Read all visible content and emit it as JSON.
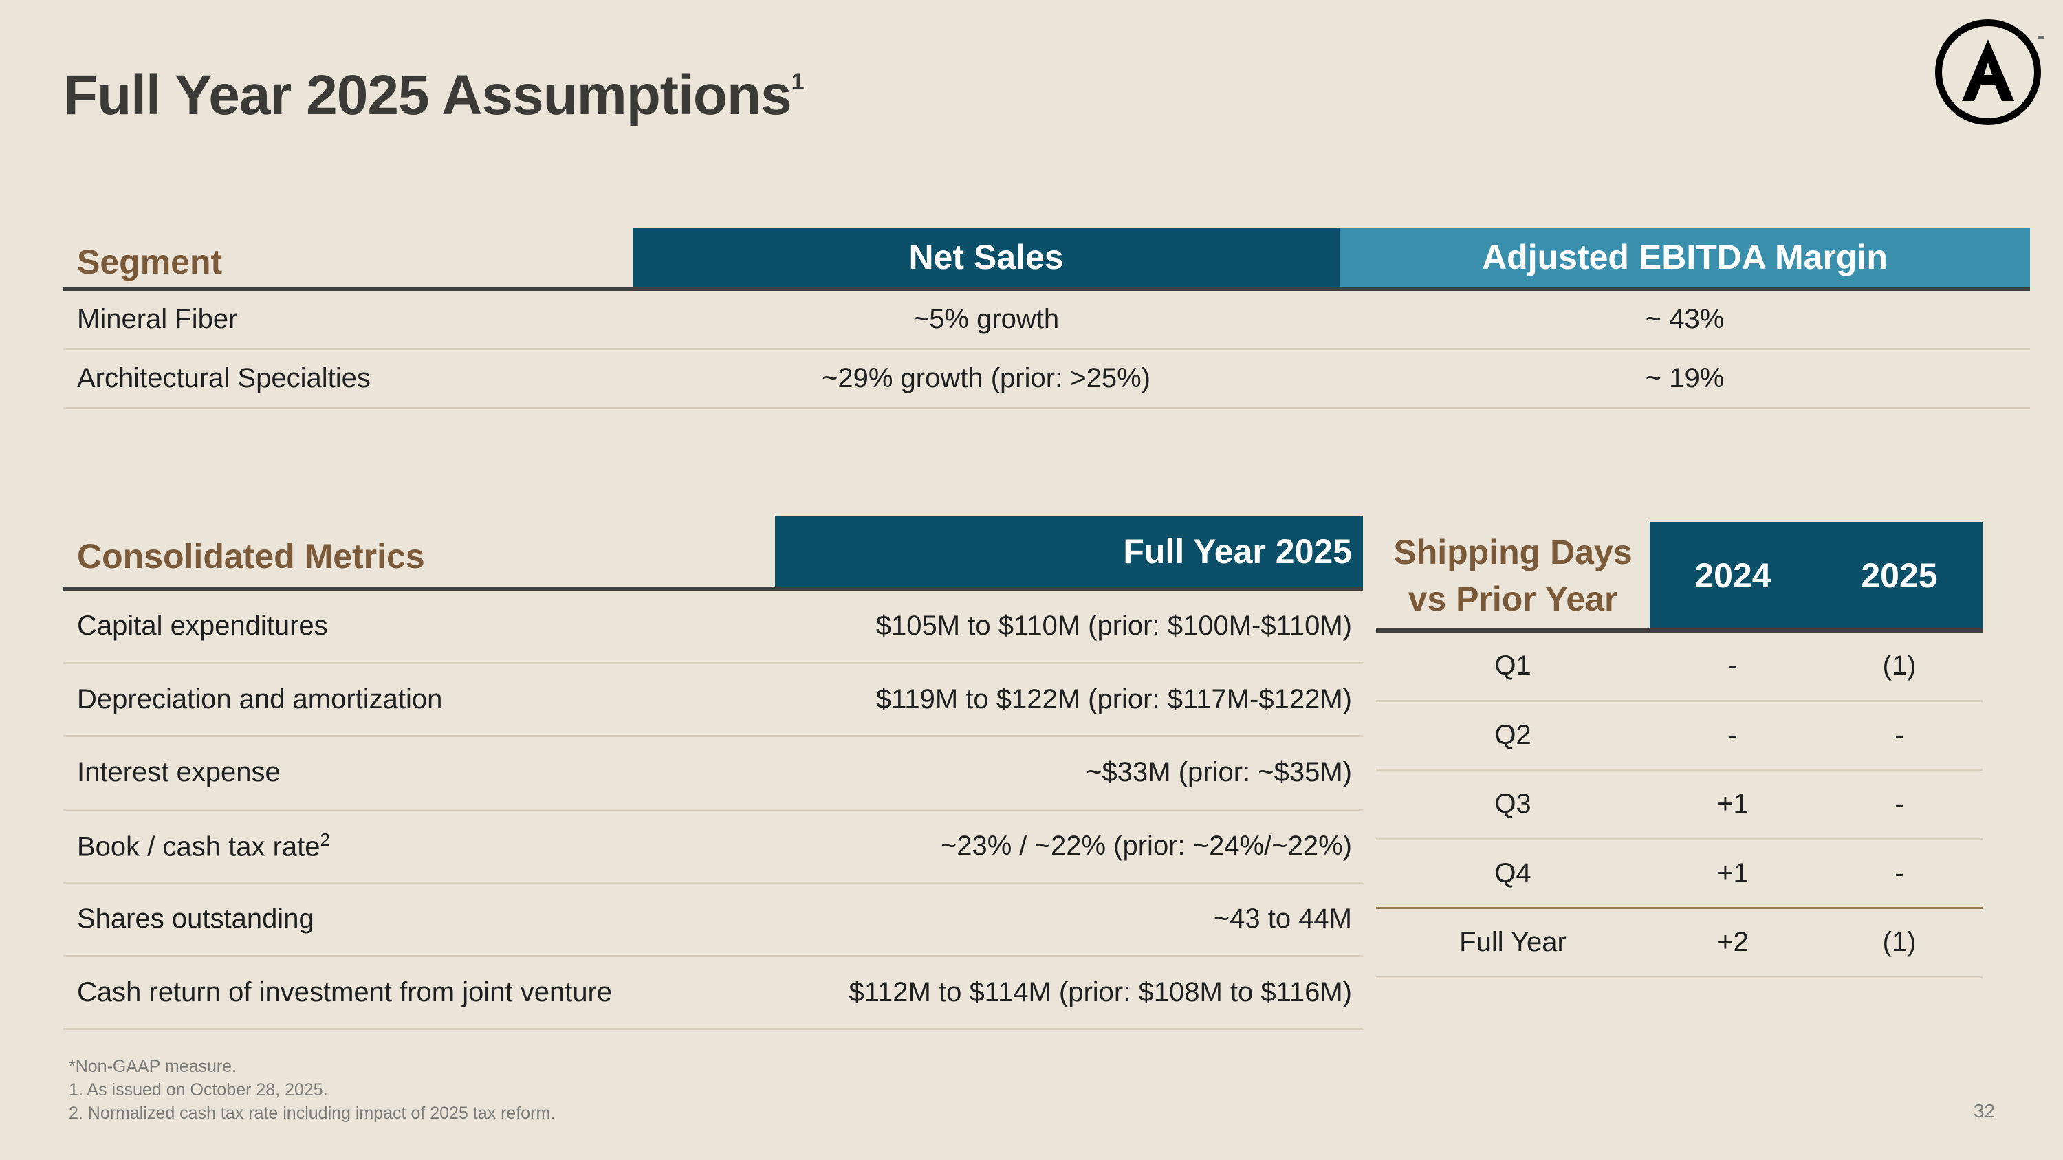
{
  "title": "Full Year 2025 Assumptions",
  "title_sup": "1",
  "brand_logo": "A",
  "colors": {
    "dark_header": "#0b4f68",
    "light_header": "#3a8fad",
    "label_brown": "#7b5a3a",
    "background": "#ebe4d9"
  },
  "segment_table": {
    "headers": [
      "Segment",
      "Net Sales",
      "Adjusted EBITDA Margin"
    ],
    "rows": [
      [
        "Mineral Fiber",
        "~5% growth",
        "~ 43%"
      ],
      [
        "Architectural Specialties",
        "~29% growth (prior: >25%)",
        "~ 19%"
      ]
    ]
  },
  "consolidated_table": {
    "headers": [
      "Consolidated Metrics",
      "Full Year 2025"
    ],
    "rows": [
      {
        "label": "Capital expenditures",
        "sup": "",
        "value": "$105M to $110M (prior: $100M-$110M)"
      },
      {
        "label": "Depreciation and amortization",
        "sup": "",
        "value": "$119M to $122M (prior: $117M-$122M)"
      },
      {
        "label": "Interest expense",
        "sup": "",
        "value": "~$33M (prior: ~$35M)"
      },
      {
        "label": "Book / cash tax rate",
        "sup": "2",
        "value": "~23% / ~22% (prior: ~24%/~22%)"
      },
      {
        "label": "Shares outstanding",
        "sup": "",
        "value": "~43 to 44M"
      },
      {
        "label": "Cash return of investment from joint venture",
        "sup": "",
        "value": "$112M to $114M (prior: $108M to $116M)"
      }
    ]
  },
  "shipping_table": {
    "header_line1": "Shipping Days",
    "header_line2": "vs Prior Year",
    "years": [
      "2024",
      "2025"
    ],
    "rows": [
      [
        "Q1",
        "-",
        "(1)"
      ],
      [
        "Q2",
        "-",
        "-"
      ],
      [
        "Q3",
        "+1",
        "-"
      ],
      [
        "Q4",
        "+1",
        "-"
      ],
      [
        "Full Year",
        "+2",
        "(1)"
      ]
    ]
  },
  "footnotes": [
    "*Non-GAAP measure.",
    "1.  As issued on October 28, 2025.",
    "2.  Normalized cash tax rate including impact of 2025 tax reform."
  ],
  "page_number": "32"
}
